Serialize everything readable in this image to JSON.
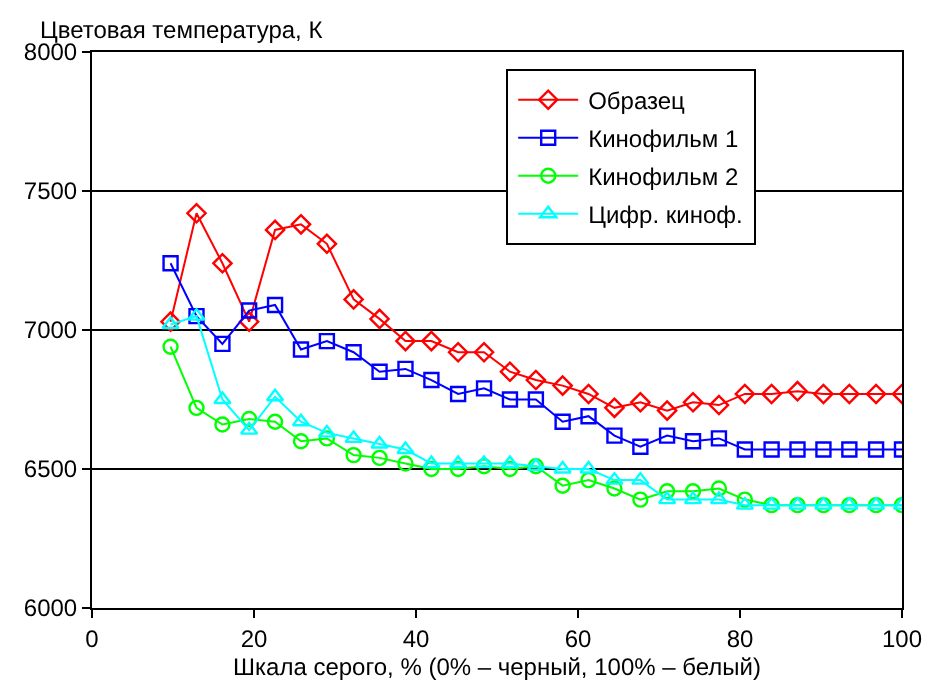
{
  "chart_data": {
    "type": "line",
    "ylabel": "Цветовая температура, К",
    "xlabel": "Шкала серого, % (0% – черный, 100% – белый)",
    "x": [
      9.7,
      12.9,
      16.1,
      19.4,
      22.6,
      25.8,
      29.0,
      32.3,
      35.5,
      38.7,
      41.9,
      45.2,
      48.4,
      51.6,
      54.8,
      58.1,
      61.3,
      64.5,
      67.7,
      71.0,
      74.2,
      77.4,
      80.6,
      83.9,
      87.1,
      90.3,
      93.5,
      96.8,
      100
    ],
    "series": [
      {
        "name": "Образец",
        "color": "#ff0000",
        "marker": "diamond",
        "values": [
          7030,
          7420,
          7240,
          7030,
          7360,
          7380,
          7310,
          7110,
          7040,
          6960,
          6960,
          6920,
          6920,
          6850,
          6820,
          6800,
          6770,
          6720,
          6740,
          6710,
          6740,
          6730,
          6770,
          6770,
          6780,
          6770,
          6770,
          6770,
          6770
        ]
      },
      {
        "name": "Кинофильм 1",
        "color": "#0000ff",
        "marker": "square",
        "values": [
          7240,
          7050,
          6950,
          7070,
          7090,
          6930,
          6960,
          6920,
          6850,
          6860,
          6820,
          6770,
          6790,
          6750,
          6750,
          6670,
          6690,
          6620,
          6580,
          6620,
          6600,
          6610,
          6570,
          6570,
          6570,
          6570,
          6570,
          6570,
          6570
        ]
      },
      {
        "name": "Кинофильм 2",
        "color": "#00ff00",
        "marker": "circle",
        "values": [
          6940,
          6720,
          6660,
          6680,
          6670,
          6600,
          6610,
          6550,
          6540,
          6520,
          6500,
          6500,
          6510,
          6500,
          6510,
          6440,
          6460,
          6430,
          6390,
          6420,
          6420,
          6430,
          6390,
          6370,
          6370,
          6370,
          6370,
          6370,
          6370
        ]
      },
      {
        "name": "Цифр. киноф.",
        "color": "#00ffff",
        "marker": "triangle",
        "values": [
          7020,
          7050,
          6750,
          6640,
          6760,
          6670,
          6630,
          6610,
          6590,
          6570,
          6520,
          6520,
          6520,
          6520,
          6510,
          6500,
          6500,
          6460,
          6460,
          6390,
          6390,
          6390,
          6370,
          6370,
          6370,
          6370,
          6370,
          6370,
          6370
        ]
      }
    ],
    "xlim": [
      0,
      100
    ],
    "xticks": [
      0,
      20,
      40,
      60,
      80,
      100
    ],
    "ylim": [
      6000,
      8000
    ],
    "yticks": [
      6000,
      6500,
      7000,
      7500,
      8000
    ],
    "grid": "y",
    "legend": "top right",
    "line_style": "solid"
  }
}
